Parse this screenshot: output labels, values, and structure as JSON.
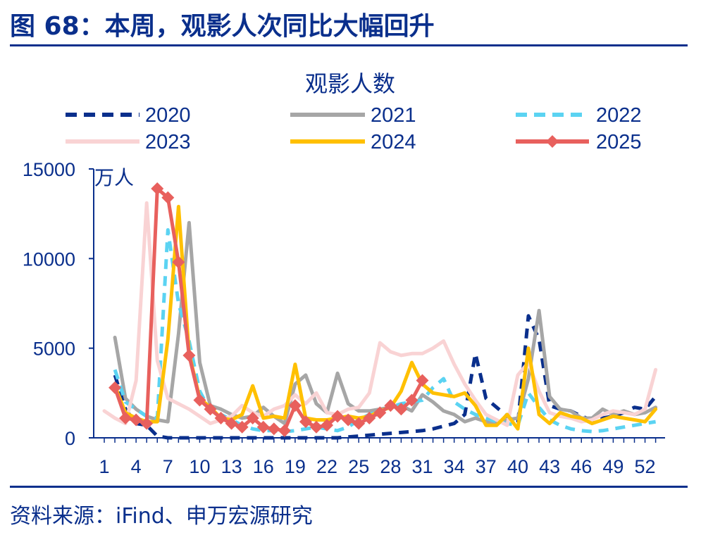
{
  "figure": {
    "title": "图 68：本周，观影人次同比大幅回升",
    "source": "资料来源：iFind、申万宏源研究"
  },
  "chart_data": {
    "type": "line",
    "title": "观影人数",
    "ylabel": "万人",
    "xlabel": "",
    "xlim": [
      1,
      53
    ],
    "ylim": [
      0,
      15000
    ],
    "yticks": [
      0,
      5000,
      10000,
      15000
    ],
    "xticks": [
      1,
      4,
      7,
      10,
      13,
      16,
      19,
      22,
      25,
      28,
      31,
      34,
      37,
      40,
      43,
      46,
      49,
      52
    ],
    "grid": false,
    "legend_position": "top",
    "series": [
      {
        "name": "2020",
        "color": "#0a2f8c",
        "style": "dashed",
        "points": [
          [
            2,
            3500
          ],
          [
            3,
            1600
          ],
          [
            4,
            800
          ],
          [
            5,
            700
          ],
          [
            6,
            100
          ],
          [
            7,
            0
          ],
          [
            8,
            0
          ],
          [
            9,
            0
          ],
          [
            10,
            0
          ],
          [
            11,
            0
          ],
          [
            12,
            0
          ],
          [
            13,
            0
          ],
          [
            14,
            0
          ],
          [
            15,
            0
          ],
          [
            16,
            0
          ],
          [
            17,
            0
          ],
          [
            18,
            0
          ],
          [
            19,
            0
          ],
          [
            20,
            0
          ],
          [
            21,
            0
          ],
          [
            22,
            0
          ],
          [
            23,
            0
          ],
          [
            24,
            50
          ],
          [
            25,
            100
          ],
          [
            26,
            150
          ],
          [
            27,
            200
          ],
          [
            28,
            250
          ],
          [
            29,
            300
          ],
          [
            30,
            350
          ],
          [
            31,
            400
          ],
          [
            32,
            500
          ],
          [
            33,
            650
          ],
          [
            34,
            800
          ],
          [
            35,
            1300
          ],
          [
            36,
            4700
          ],
          [
            37,
            2200
          ],
          [
            38,
            1700
          ],
          [
            39,
            1200
          ],
          [
            40,
            800
          ],
          [
            41,
            6800
          ],
          [
            42,
            5500
          ],
          [
            43,
            1800
          ],
          [
            44,
            1600
          ],
          [
            45,
            1500
          ],
          [
            46,
            1200
          ],
          [
            47,
            1000
          ],
          [
            48,
            1100
          ],
          [
            49,
            1200
          ],
          [
            50,
            1400
          ],
          [
            51,
            1700
          ],
          [
            52,
            1600
          ],
          [
            53,
            2300
          ]
        ]
      },
      {
        "name": "2021",
        "color": "#a6a6a6",
        "style": "solid",
        "points": [
          [
            2,
            5600
          ],
          [
            3,
            2200
          ],
          [
            4,
            1600
          ],
          [
            5,
            1200
          ],
          [
            6,
            1000
          ],
          [
            7,
            900
          ],
          [
            8,
            5800
          ],
          [
            9,
            12000
          ],
          [
            10,
            4200
          ],
          [
            11,
            1800
          ],
          [
            12,
            1600
          ],
          [
            13,
            1300
          ],
          [
            14,
            1100
          ],
          [
            15,
            1200
          ],
          [
            16,
            1700
          ],
          [
            17,
            1200
          ],
          [
            18,
            800
          ],
          [
            19,
            3000
          ],
          [
            20,
            3500
          ],
          [
            21,
            1900
          ],
          [
            22,
            1400
          ],
          [
            23,
            3600
          ],
          [
            24,
            1900
          ],
          [
            25,
            1500
          ],
          [
            26,
            1500
          ],
          [
            27,
            1600
          ],
          [
            28,
            1700
          ],
          [
            29,
            1800
          ],
          [
            30,
            1500
          ],
          [
            31,
            2400
          ],
          [
            32,
            2000
          ],
          [
            33,
            1500
          ],
          [
            34,
            1300
          ],
          [
            35,
            900
          ],
          [
            36,
            1100
          ],
          [
            37,
            900
          ],
          [
            38,
            800
          ],
          [
            39,
            1000
          ],
          [
            40,
            1100
          ],
          [
            41,
            3300
          ],
          [
            42,
            7100
          ],
          [
            43,
            2300
          ],
          [
            44,
            1600
          ],
          [
            45,
            1500
          ],
          [
            46,
            1100
          ],
          [
            47,
            1100
          ],
          [
            48,
            1600
          ],
          [
            49,
            1300
          ],
          [
            50,
            1500
          ],
          [
            51,
            1300
          ],
          [
            52,
            1400
          ],
          [
            53,
            1700
          ]
        ]
      },
      {
        "name": "2022",
        "color": "#5bd3f2",
        "style": "dashed",
        "points": [
          [
            2,
            3800
          ],
          [
            3,
            2000
          ],
          [
            4,
            1600
          ],
          [
            5,
            1200
          ],
          [
            6,
            1100
          ],
          [
            7,
            11600
          ],
          [
            8,
            7500
          ],
          [
            9,
            5400
          ],
          [
            10,
            2600
          ],
          [
            11,
            1500
          ],
          [
            12,
            1300
          ],
          [
            13,
            1000
          ],
          [
            14,
            700
          ],
          [
            15,
            500
          ],
          [
            16,
            400
          ],
          [
            17,
            400
          ],
          [
            18,
            350
          ],
          [
            19,
            400
          ],
          [
            20,
            500
          ],
          [
            21,
            600
          ],
          [
            22,
            500
          ],
          [
            23,
            400
          ],
          [
            24,
            600
          ],
          [
            25,
            1000
          ],
          [
            26,
            1300
          ],
          [
            27,
            1500
          ],
          [
            28,
            1700
          ],
          [
            29,
            1900
          ],
          [
            30,
            2000
          ],
          [
            31,
            2100
          ],
          [
            32,
            2800
          ],
          [
            33,
            3300
          ],
          [
            34,
            2000
          ],
          [
            35,
            1600
          ],
          [
            36,
            1300
          ],
          [
            37,
            1100
          ],
          [
            38,
            900
          ],
          [
            39,
            800
          ],
          [
            40,
            700
          ],
          [
            41,
            2500
          ],
          [
            42,
            1700
          ],
          [
            43,
            1000
          ],
          [
            44,
            700
          ],
          [
            45,
            500
          ],
          [
            46,
            400
          ],
          [
            47,
            350
          ],
          [
            48,
            400
          ],
          [
            49,
            500
          ],
          [
            50,
            600
          ],
          [
            51,
            700
          ],
          [
            52,
            800
          ],
          [
            53,
            900
          ]
        ]
      },
      {
        "name": "2023",
        "color": "#f9d3d4",
        "style": "solid",
        "points": [
          [
            1,
            1500
          ],
          [
            2,
            1100
          ],
          [
            3,
            800
          ],
          [
            4,
            3200
          ],
          [
            5,
            13100
          ],
          [
            6,
            4300
          ],
          [
            7,
            2200
          ],
          [
            8,
            1900
          ],
          [
            9,
            1600
          ],
          [
            10,
            1200
          ],
          [
            11,
            800
          ],
          [
            12,
            1000
          ],
          [
            13,
            1200
          ],
          [
            14,
            1800
          ],
          [
            15,
            1400
          ],
          [
            16,
            1200
          ],
          [
            17,
            1600
          ],
          [
            18,
            1800
          ],
          [
            19,
            2400
          ],
          [
            20,
            1900
          ],
          [
            21,
            2500
          ],
          [
            22,
            1400
          ],
          [
            23,
            1300
          ],
          [
            24,
            1600
          ],
          [
            25,
            1700
          ],
          [
            26,
            2500
          ],
          [
            27,
            5300
          ],
          [
            28,
            4800
          ],
          [
            29,
            4600
          ],
          [
            30,
            4700
          ],
          [
            31,
            4700
          ],
          [
            32,
            5000
          ],
          [
            33,
            5400
          ],
          [
            34,
            4100
          ],
          [
            35,
            3000
          ],
          [
            36,
            2100
          ],
          [
            37,
            1300
          ],
          [
            38,
            1000
          ],
          [
            39,
            700
          ],
          [
            40,
            3500
          ],
          [
            41,
            4200
          ],
          [
            42,
            2600
          ],
          [
            43,
            1400
          ],
          [
            44,
            1200
          ],
          [
            45,
            1100
          ],
          [
            46,
            900
          ],
          [
            47,
            1000
          ],
          [
            48,
            1300
          ],
          [
            49,
            1500
          ],
          [
            50,
            1400
          ],
          [
            51,
            1300
          ],
          [
            52,
            1600
          ],
          [
            53,
            3800
          ]
        ]
      },
      {
        "name": "2024",
        "color": "#ffc000",
        "style": "solid",
        "points": [
          [
            2,
            2900
          ],
          [
            3,
            1400
          ],
          [
            4,
            1100
          ],
          [
            5,
            900
          ],
          [
            6,
            900
          ],
          [
            7,
            5500
          ],
          [
            8,
            12900
          ],
          [
            9,
            4700
          ],
          [
            10,
            2200
          ],
          [
            11,
            1700
          ],
          [
            12,
            1100
          ],
          [
            13,
            1000
          ],
          [
            14,
            1300
          ],
          [
            15,
            2900
          ],
          [
            16,
            1100
          ],
          [
            17,
            1200
          ],
          [
            18,
            1100
          ],
          [
            19,
            4100
          ],
          [
            20,
            1100
          ],
          [
            21,
            1000
          ],
          [
            22,
            1000
          ],
          [
            23,
            1100
          ],
          [
            24,
            1200
          ],
          [
            25,
            1100
          ],
          [
            26,
            1200
          ],
          [
            27,
            1500
          ],
          [
            28,
            1700
          ],
          [
            29,
            2600
          ],
          [
            30,
            4200
          ],
          [
            31,
            3000
          ],
          [
            32,
            2500
          ],
          [
            33,
            2400
          ],
          [
            34,
            2300
          ],
          [
            35,
            2500
          ],
          [
            36,
            1800
          ],
          [
            37,
            700
          ],
          [
            38,
            700
          ],
          [
            39,
            1300
          ],
          [
            40,
            500
          ],
          [
            41,
            5000
          ],
          [
            42,
            1300
          ],
          [
            43,
            800
          ],
          [
            44,
            1400
          ],
          [
            45,
            1200
          ],
          [
            46,
            1100
          ],
          [
            47,
            800
          ],
          [
            48,
            1000
          ],
          [
            49,
            1200
          ],
          [
            50,
            1100
          ],
          [
            51,
            1000
          ],
          [
            52,
            900
          ],
          [
            53,
            1600
          ]
        ]
      },
      {
        "name": "2025",
        "color": "#e8605d",
        "style": "solid-diamond",
        "points": [
          [
            2,
            2800
          ],
          [
            3,
            1100
          ],
          [
            4,
            1000
          ],
          [
            5,
            800
          ],
          [
            6,
            13900
          ],
          [
            7,
            13400
          ],
          [
            8,
            9800
          ],
          [
            9,
            4600
          ],
          [
            10,
            2100
          ],
          [
            11,
            1600
          ],
          [
            12,
            1100
          ],
          [
            13,
            800
          ],
          [
            14,
            600
          ],
          [
            15,
            1100
          ],
          [
            16,
            600
          ],
          [
            17,
            500
          ],
          [
            18,
            400
          ],
          [
            19,
            1800
          ],
          [
            20,
            900
          ],
          [
            21,
            600
          ],
          [
            22,
            700
          ],
          [
            23,
            1200
          ],
          [
            24,
            1000
          ],
          [
            25,
            800
          ],
          [
            26,
            1100
          ],
          [
            27,
            1400
          ],
          [
            28,
            1800
          ],
          [
            29,
            1600
          ],
          [
            30,
            2100
          ],
          [
            31,
            3200
          ]
        ]
      }
    ]
  }
}
